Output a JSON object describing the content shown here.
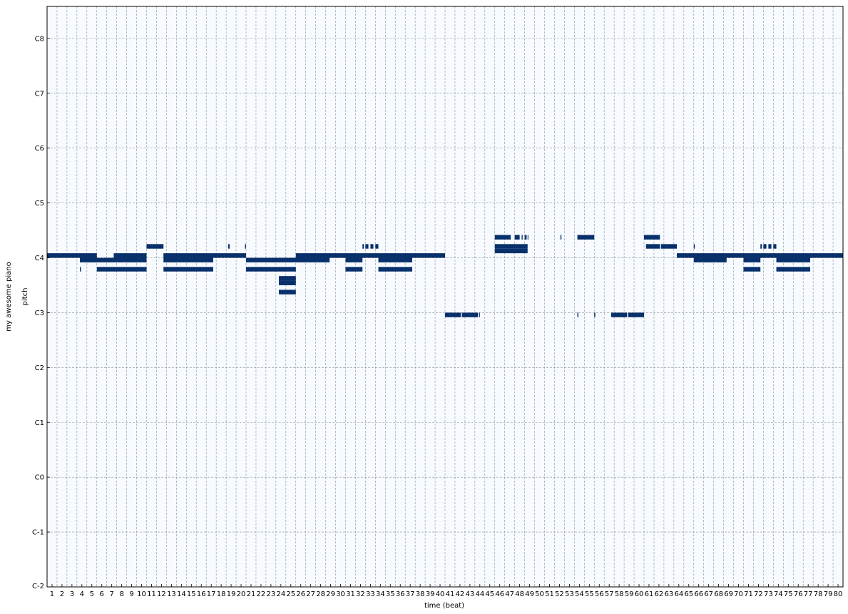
{
  "chart_data": {
    "type": "heatmap",
    "subtype": "piano-roll",
    "title": "",
    "xlabel": "time (beat)",
    "ylabel": "pitch",
    "track_label": "my awesome piano",
    "x_ticks": [
      "1",
      "2",
      "3",
      "4",
      "5",
      "6",
      "7",
      "8",
      "9",
      "10",
      "11",
      "12",
      "13",
      "14",
      "15",
      "16",
      "17",
      "18",
      "19",
      "20",
      "21",
      "22",
      "23",
      "24",
      "25",
      "26",
      "27",
      "28",
      "29",
      "30",
      "31",
      "32",
      "33",
      "34",
      "35",
      "36",
      "37",
      "38",
      "39",
      "40",
      "41",
      "42",
      "43",
      "44",
      "45",
      "46",
      "47",
      "48",
      "49",
      "50",
      "51",
      "52",
      "53",
      "54",
      "55",
      "56",
      "57",
      "58",
      "59",
      "60",
      "61",
      "62",
      "63",
      "64",
      "65",
      "66",
      "67",
      "68",
      "69",
      "70",
      "71",
      "72",
      "73",
      "74",
      "75",
      "76",
      "77",
      "78",
      "79",
      "80"
    ],
    "xlim": [
      0,
      80
    ],
    "y_ticks": [
      {
        "label": "C-2",
        "pitch": 0
      },
      {
        "label": "C-1",
        "pitch": 12
      },
      {
        "label": "C0",
        "pitch": 24
      },
      {
        "label": "C1",
        "pitch": 36
      },
      {
        "label": "C2",
        "pitch": 48
      },
      {
        "label": "C3",
        "pitch": 60
      },
      {
        "label": "C4",
        "pitch": 72
      },
      {
        "label": "C5",
        "pitch": 84
      },
      {
        "label": "C6",
        "pitch": 96
      },
      {
        "label": "C7",
        "pitch": 108
      },
      {
        "label": "C8",
        "pitch": 120
      }
    ],
    "ylim": [
      0,
      127
    ],
    "grid": true,
    "colors": {
      "background": "#f7fbff",
      "note": "#08306b",
      "grid": "#8a8f99"
    },
    "notes": [
      {
        "pitch": 72,
        "start": 0,
        "end": 5
      },
      {
        "pitch": 71,
        "start": 3.3,
        "end": 10
      },
      {
        "pitch": 69,
        "start": 3.3,
        "end": 3.4
      },
      {
        "pitch": 69,
        "start": 5,
        "end": 10
      },
      {
        "pitch": 72,
        "start": 6.7,
        "end": 10
      },
      {
        "pitch": 74,
        "start": 10,
        "end": 11.7
      },
      {
        "pitch": 72,
        "start": 11.7,
        "end": 20
      },
      {
        "pitch": 71,
        "start": 11.7,
        "end": 16.7
      },
      {
        "pitch": 69,
        "start": 11.7,
        "end": 16.7
      },
      {
        "pitch": 74,
        "start": 18.2,
        "end": 18.35
      },
      {
        "pitch": 74,
        "start": 19.9,
        "end": 20
      },
      {
        "pitch": 71,
        "start": 20,
        "end": 28.4
      },
      {
        "pitch": 69,
        "start": 20,
        "end": 25
      },
      {
        "pitch": 67,
        "start": 23.3,
        "end": 25
      },
      {
        "pitch": 66,
        "start": 23.3,
        "end": 25
      },
      {
        "pitch": 64,
        "start": 23.3,
        "end": 25
      },
      {
        "pitch": 72,
        "start": 25,
        "end": 40
      },
      {
        "pitch": 71,
        "start": 30,
        "end": 31.7
      },
      {
        "pitch": 69,
        "start": 30,
        "end": 31.7
      },
      {
        "pitch": 74,
        "start": 31.7,
        "end": 31.85
      },
      {
        "pitch": 74,
        "start": 32,
        "end": 32.3
      },
      {
        "pitch": 74,
        "start": 32.5,
        "end": 32.8
      },
      {
        "pitch": 74,
        "start": 33,
        "end": 33.3
      },
      {
        "pitch": 71,
        "start": 33.3,
        "end": 36.7
      },
      {
        "pitch": 69,
        "start": 33.3,
        "end": 36.7
      },
      {
        "pitch": 59,
        "start": 40,
        "end": 41.6
      },
      {
        "pitch": 59,
        "start": 41.7,
        "end": 43.3
      },
      {
        "pitch": 59,
        "start": 43.4,
        "end": 43.5
      },
      {
        "pitch": 76,
        "start": 45,
        "end": 46.6
      },
      {
        "pitch": 76,
        "start": 47,
        "end": 47.5
      },
      {
        "pitch": 76,
        "start": 47.7,
        "end": 47.8
      },
      {
        "pitch": 76,
        "start": 48,
        "end": 48.2
      },
      {
        "pitch": 76,
        "start": 48.3,
        "end": 48.35
      },
      {
        "pitch": 74,
        "start": 45,
        "end": 48.3
      },
      {
        "pitch": 73,
        "start": 45,
        "end": 48.3
      },
      {
        "pitch": 76,
        "start": 51.6,
        "end": 51.7
      },
      {
        "pitch": 76,
        "start": 53.3,
        "end": 55
      },
      {
        "pitch": 59,
        "start": 53.3,
        "end": 53.4
      },
      {
        "pitch": 59,
        "start": 55,
        "end": 55.1
      },
      {
        "pitch": 59,
        "start": 56.7,
        "end": 58.3
      },
      {
        "pitch": 59,
        "start": 58.4,
        "end": 60
      },
      {
        "pitch": 76,
        "start": 60,
        "end": 61.6
      },
      {
        "pitch": 74,
        "start": 60.2,
        "end": 61.6
      },
      {
        "pitch": 74,
        "start": 61.7,
        "end": 63.3
      },
      {
        "pitch": 72,
        "start": 63.3,
        "end": 80
      },
      {
        "pitch": 74,
        "start": 65,
        "end": 65.1
      },
      {
        "pitch": 71,
        "start": 65,
        "end": 68.3
      },
      {
        "pitch": 71,
        "start": 70,
        "end": 71.7
      },
      {
        "pitch": 69,
        "start": 70,
        "end": 71.7
      },
      {
        "pitch": 74,
        "start": 71.7,
        "end": 71.85
      },
      {
        "pitch": 74,
        "start": 72,
        "end": 72.3
      },
      {
        "pitch": 74,
        "start": 72.5,
        "end": 72.8
      },
      {
        "pitch": 74,
        "start": 73,
        "end": 73.3
      },
      {
        "pitch": 71,
        "start": 73.3,
        "end": 76.7
      },
      {
        "pitch": 69,
        "start": 73.3,
        "end": 76.7
      }
    ]
  }
}
